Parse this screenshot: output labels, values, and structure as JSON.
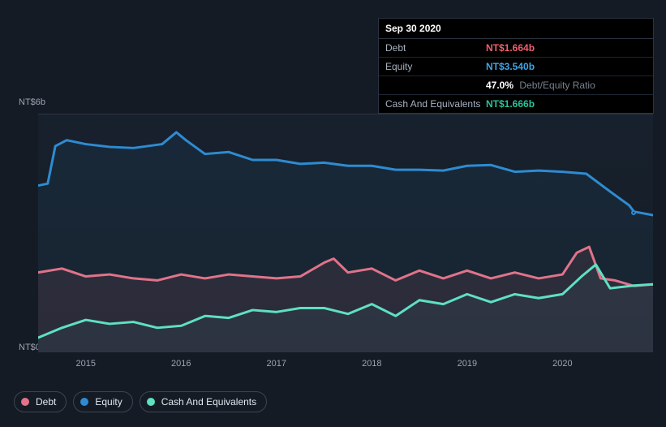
{
  "chart": {
    "background_color": "#151b24",
    "plot_bg_top": "#17212d",
    "plot_bg_bottom": "#151b24",
    "gridline_color": "#2c3644",
    "y_top_label": "NT$6b",
    "y_bottom_label": "NT$0",
    "text_color": "#9aa5b3",
    "xticks": [
      "2015",
      "2016",
      "2017",
      "2018",
      "2019",
      "2020"
    ],
    "xlim": [
      2014.5,
      2020.95
    ],
    "ylim": [
      0,
      6
    ],
    "line_width": 3,
    "series": {
      "equity": {
        "label": "Equity",
        "color": "#2e8bd1",
        "fill_opacity": 0.08,
        "data": [
          [
            2014.5,
            4.2
          ],
          [
            2014.6,
            4.25
          ],
          [
            2014.68,
            5.2
          ],
          [
            2014.8,
            5.35
          ],
          [
            2015.0,
            5.25
          ],
          [
            2015.25,
            5.18
          ],
          [
            2015.5,
            5.15
          ],
          [
            2015.8,
            5.25
          ],
          [
            2015.95,
            5.55
          ],
          [
            2016.05,
            5.35
          ],
          [
            2016.25,
            5.0
          ],
          [
            2016.5,
            5.05
          ],
          [
            2016.75,
            4.85
          ],
          [
            2017.0,
            4.85
          ],
          [
            2017.25,
            4.75
          ],
          [
            2017.5,
            4.78
          ],
          [
            2017.75,
            4.7
          ],
          [
            2018.0,
            4.7
          ],
          [
            2018.25,
            4.6
          ],
          [
            2018.5,
            4.6
          ],
          [
            2018.75,
            4.58
          ],
          [
            2019.0,
            4.7
          ],
          [
            2019.25,
            4.72
          ],
          [
            2019.5,
            4.55
          ],
          [
            2019.75,
            4.58
          ],
          [
            2020.0,
            4.55
          ],
          [
            2020.25,
            4.5
          ],
          [
            2020.5,
            4.05
          ],
          [
            2020.7,
            3.7
          ],
          [
            2020.75,
            3.54
          ],
          [
            2020.95,
            3.45
          ]
        ]
      },
      "debt": {
        "label": "Debt",
        "color": "#e0738a",
        "fill_opacity": 0.1,
        "data": [
          [
            2014.5,
            2.0
          ],
          [
            2014.75,
            2.1
          ],
          [
            2015.0,
            1.9
          ],
          [
            2015.25,
            1.95
          ],
          [
            2015.5,
            1.85
          ],
          [
            2015.75,
            1.8
          ],
          [
            2016.0,
            1.95
          ],
          [
            2016.25,
            1.85
          ],
          [
            2016.5,
            1.95
          ],
          [
            2016.75,
            1.9
          ],
          [
            2017.0,
            1.85
          ],
          [
            2017.25,
            1.9
          ],
          [
            2017.5,
            2.25
          ],
          [
            2017.6,
            2.35
          ],
          [
            2017.75,
            2.0
          ],
          [
            2018.0,
            2.1
          ],
          [
            2018.25,
            1.8
          ],
          [
            2018.5,
            2.05
          ],
          [
            2018.75,
            1.85
          ],
          [
            2019.0,
            2.05
          ],
          [
            2019.25,
            1.85
          ],
          [
            2019.5,
            2.0
          ],
          [
            2019.75,
            1.85
          ],
          [
            2020.0,
            1.95
          ],
          [
            2020.15,
            2.5
          ],
          [
            2020.28,
            2.65
          ],
          [
            2020.4,
            1.85
          ],
          [
            2020.55,
            1.8
          ],
          [
            2020.75,
            1.66
          ],
          [
            2020.95,
            1.7
          ]
        ]
      },
      "cash": {
        "label": "Cash And Equivalents",
        "color": "#5fe0c3",
        "fill_opacity": 0.05,
        "data": [
          [
            2014.5,
            0.35
          ],
          [
            2014.75,
            0.6
          ],
          [
            2015.0,
            0.8
          ],
          [
            2015.25,
            0.7
          ],
          [
            2015.5,
            0.75
          ],
          [
            2015.75,
            0.6
          ],
          [
            2016.0,
            0.65
          ],
          [
            2016.25,
            0.9
          ],
          [
            2016.5,
            0.85
          ],
          [
            2016.75,
            1.05
          ],
          [
            2017.0,
            1.0
          ],
          [
            2017.25,
            1.1
          ],
          [
            2017.5,
            1.1
          ],
          [
            2017.75,
            0.95
          ],
          [
            2018.0,
            1.2
          ],
          [
            2018.25,
            0.9
          ],
          [
            2018.5,
            1.3
          ],
          [
            2018.75,
            1.2
          ],
          [
            2019.0,
            1.45
          ],
          [
            2019.25,
            1.25
          ],
          [
            2019.5,
            1.45
          ],
          [
            2019.75,
            1.35
          ],
          [
            2020.0,
            1.45
          ],
          [
            2020.2,
            1.9
          ],
          [
            2020.35,
            2.2
          ],
          [
            2020.5,
            1.6
          ],
          [
            2020.75,
            1.67
          ],
          [
            2020.95,
            1.7
          ]
        ]
      }
    }
  },
  "tooltip": {
    "date": "Sep 30 2020",
    "rows": [
      {
        "key": "Debt",
        "value": "NT$1.664b",
        "color": "#f05f6e",
        "extra": ""
      },
      {
        "key": "Equity",
        "value": "NT$3.540b",
        "color": "#3fa4e6",
        "extra": ""
      },
      {
        "key": "",
        "value": "47.0%",
        "color": "#ffffff",
        "extra": "Debt/Equity Ratio"
      },
      {
        "key": "Cash And Equivalents",
        "value": "NT$1.666b",
        "color": "#28c29b",
        "extra": ""
      }
    ]
  },
  "legend": [
    {
      "name": "debt",
      "label": "Debt",
      "color": "#e0738a"
    },
    {
      "name": "equity",
      "label": "Equity",
      "color": "#2e8bd1"
    },
    {
      "name": "cash",
      "label": "Cash And Equivalents",
      "color": "#5fe0c3"
    }
  ]
}
